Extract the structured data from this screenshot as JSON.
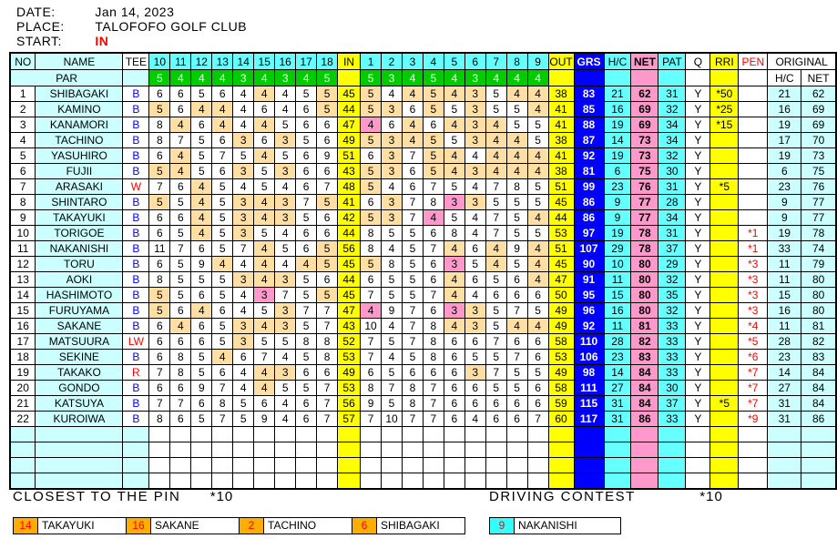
{
  "colors": {
    "cyan_bright": "#66FFFF",
    "cyan_light": "#CCFFFF",
    "green": "#00CC00",
    "yellow": "#FFFF00",
    "blue": "#0000FF",
    "pink": "#FF99CC",
    "tan": "#FFDFA3",
    "orange": "#FFAD00",
    "contest_cyan": "#33FFFF",
    "red": "#FF0000",
    "tee_blue": "#0000FF"
  },
  "meta": {
    "date_label": "DATE:",
    "date_value": "Jan 14, 2023",
    "place_label": "PLACE:",
    "place_value": "TALOFOFO GOLF CLUB",
    "start_label": "START:",
    "start_value": "IN"
  },
  "table": {
    "col_no": "NO",
    "col_name": "NAME",
    "col_tee": "TEE",
    "col_in": "IN",
    "col_out": "OUT",
    "col_grs": "GRS",
    "col_hc": "H/C",
    "col_net": "NET",
    "col_pat": "PAT",
    "col_q": "Q",
    "col_rri": "RRI",
    "col_pen": "PEN",
    "col_original": "ORIGINAL",
    "col_orig_hc": "H/C",
    "col_orig_net": "NET",
    "par_label": "PAR",
    "holes_back": [
      "10",
      "11",
      "12",
      "13",
      "14",
      "15",
      "16",
      "17",
      "18"
    ],
    "holes_front": [
      "1",
      "2",
      "3",
      "4",
      "5",
      "6",
      "7",
      "8",
      "9"
    ],
    "par_back": [
      5,
      4,
      4,
      4,
      3,
      4,
      3,
      4,
      5
    ],
    "par_front": [
      5,
      3,
      4,
      5,
      4,
      3,
      4,
      4,
      4
    ],
    "empty_rows": 4,
    "players": [
      {
        "no": 1,
        "name": "SHIBAGAKI",
        "tee": "B",
        "back": [
          6,
          6,
          5,
          6,
          4,
          4,
          4,
          5,
          5
        ],
        "in": 45,
        "front": [
          5,
          4,
          4,
          5,
          4,
          3,
          5,
          4,
          4
        ],
        "out": 38,
        "grs": 83,
        "hc": 21,
        "net": 62,
        "pat": 31,
        "q": "Y",
        "rri": "*50",
        "pen": "",
        "orig_hc": 21,
        "orig_net": 62
      },
      {
        "no": 2,
        "name": "KAMINO",
        "tee": "B",
        "back": [
          5,
          6,
          4,
          4,
          4,
          6,
          4,
          6,
          5
        ],
        "in": 44,
        "front": [
          5,
          3,
          6,
          5,
          5,
          3,
          5,
          5,
          4
        ],
        "out": 41,
        "grs": 85,
        "hc": 16,
        "net": 69,
        "pat": 32,
        "q": "Y",
        "rri": "*25",
        "pen": "",
        "orig_hc": 16,
        "orig_net": 69
      },
      {
        "no": 3,
        "name": "KANAMORI",
        "tee": "B",
        "back": [
          8,
          4,
          6,
          4,
          4,
          4,
          5,
          6,
          6
        ],
        "in": 47,
        "front": [
          4,
          6,
          4,
          6,
          4,
          3,
          4,
          5,
          5
        ],
        "out": 41,
        "grs": 88,
        "hc": 19,
        "net": 69,
        "pat": 34,
        "q": "Y",
        "rri": "*15",
        "pen": "",
        "orig_hc": 19,
        "orig_net": 69
      },
      {
        "no": 4,
        "name": "TACHINO",
        "tee": "B",
        "back": [
          8,
          7,
          5,
          6,
          3,
          6,
          3,
          5,
          6
        ],
        "in": 49,
        "front": [
          5,
          3,
          4,
          5,
          5,
          3,
          4,
          4,
          5
        ],
        "out": 38,
        "grs": 87,
        "hc": 14,
        "net": 73,
        "pat": 34,
        "q": "Y",
        "rri": "",
        "pen": "",
        "orig_hc": 17,
        "orig_net": 70
      },
      {
        "no": 5,
        "name": "YASUHIRO",
        "tee": "B",
        "back": [
          6,
          4,
          5,
          7,
          5,
          4,
          5,
          6,
          9
        ],
        "in": 51,
        "front": [
          6,
          3,
          7,
          5,
          4,
          4,
          4,
          4,
          4
        ],
        "out": 41,
        "grs": 92,
        "hc": 19,
        "net": 73,
        "pat": 32,
        "q": "Y",
        "rri": "",
        "pen": "",
        "orig_hc": 19,
        "orig_net": 73
      },
      {
        "no": 6,
        "name": "FUJII",
        "tee": "B",
        "back": [
          5,
          4,
          5,
          6,
          3,
          5,
          3,
          6,
          6
        ],
        "in": 43,
        "front": [
          5,
          3,
          6,
          5,
          4,
          3,
          4,
          4,
          4
        ],
        "out": 38,
        "grs": 81,
        "hc": 6,
        "net": 75,
        "pat": 30,
        "q": "Y",
        "rri": "",
        "pen": "",
        "orig_hc": 6,
        "orig_net": 75
      },
      {
        "no": 7,
        "name": "ARASAKI",
        "tee": "W",
        "back": [
          7,
          6,
          4,
          5,
          4,
          5,
          4,
          6,
          7
        ],
        "in": 48,
        "front": [
          5,
          4,
          6,
          7,
          5,
          4,
          7,
          8,
          5
        ],
        "out": 51,
        "grs": 99,
        "hc": 23,
        "net": 76,
        "pat": 31,
        "q": "Y",
        "rri": "*5",
        "pen": "",
        "orig_hc": 23,
        "orig_net": 76
      },
      {
        "no": 8,
        "name": "SHINTARO",
        "tee": "B",
        "back": [
          5,
          5,
          4,
          5,
          3,
          4,
          3,
          7,
          5
        ],
        "in": 41,
        "front": [
          6,
          3,
          7,
          8,
          3,
          3,
          5,
          5,
          5
        ],
        "out": 45,
        "grs": 86,
        "hc": 9,
        "net": 77,
        "pat": 28,
        "q": "Y",
        "rri": "",
        "pen": "",
        "orig_hc": 9,
        "orig_net": 77
      },
      {
        "no": 9,
        "name": "TAKAYUKI",
        "tee": "B",
        "back": [
          6,
          6,
          4,
          5,
          3,
          4,
          3,
          5,
          6
        ],
        "in": 42,
        "front": [
          5,
          3,
          7,
          4,
          5,
          4,
          7,
          5,
          4
        ],
        "out": 44,
        "grs": 86,
        "hc": 9,
        "net": 77,
        "pat": 34,
        "q": "Y",
        "rri": "",
        "pen": "",
        "orig_hc": 9,
        "orig_net": 77
      },
      {
        "no": 10,
        "name": "TORIGOE",
        "tee": "B",
        "back": [
          6,
          5,
          4,
          5,
          3,
          5,
          4,
          6,
          6
        ],
        "in": 44,
        "front": [
          8,
          5,
          5,
          6,
          8,
          4,
          7,
          5,
          5
        ],
        "out": 53,
        "grs": 97,
        "hc": 19,
        "net": 78,
        "pat": 31,
        "q": "Y",
        "rri": "",
        "pen": "*1",
        "orig_hc": 19,
        "orig_net": 78
      },
      {
        "no": 11,
        "name": "NAKANISHI",
        "tee": "B",
        "back": [
          11,
          7,
          6,
          5,
          7,
          4,
          5,
          6,
          5
        ],
        "in": 56,
        "front": [
          8,
          4,
          5,
          7,
          4,
          6,
          4,
          9,
          4
        ],
        "out": 51,
        "grs": 107,
        "hc": 29,
        "net": 78,
        "pat": 37,
        "q": "Y",
        "rri": "",
        "pen": "*1",
        "orig_hc": 33,
        "orig_net": 74
      },
      {
        "no": 12,
        "name": "TORU",
        "tee": "B",
        "back": [
          6,
          5,
          9,
          4,
          4,
          4,
          4,
          4,
          5
        ],
        "in": 45,
        "front": [
          5,
          8,
          5,
          6,
          3,
          5,
          4,
          5,
          4
        ],
        "out": 45,
        "grs": 90,
        "hc": 10,
        "net": 80,
        "pat": 29,
        "q": "Y",
        "rri": "",
        "pen": "*3",
        "orig_hc": 11,
        "orig_net": 79
      },
      {
        "no": 13,
        "name": "AOKI",
        "tee": "B",
        "back": [
          8,
          5,
          5,
          5,
          3,
          4,
          3,
          5,
          6
        ],
        "in": 44,
        "front": [
          6,
          5,
          5,
          6,
          4,
          6,
          5,
          6,
          4
        ],
        "out": 47,
        "grs": 91,
        "hc": 11,
        "net": 80,
        "pat": 32,
        "q": "Y",
        "rri": "",
        "pen": "*3",
        "orig_hc": 11,
        "orig_net": 80
      },
      {
        "no": 14,
        "name": "HASHIMOTO",
        "tee": "B",
        "back": [
          5,
          5,
          6,
          5,
          4,
          3,
          7,
          5,
          5
        ],
        "in": 45,
        "front": [
          7,
          5,
          5,
          7,
          4,
          4,
          6,
          6,
          6
        ],
        "out": 50,
        "grs": 95,
        "hc": 15,
        "net": 80,
        "pat": 35,
        "q": "Y",
        "rri": "",
        "pen": "*3",
        "orig_hc": 15,
        "orig_net": 80
      },
      {
        "no": 15,
        "name": "FURUYAMA",
        "tee": "B",
        "back": [
          5,
          6,
          4,
          6,
          4,
          5,
          3,
          7,
          7
        ],
        "in": 47,
        "front": [
          4,
          9,
          7,
          6,
          3,
          3,
          5,
          7,
          5
        ],
        "out": 49,
        "grs": 96,
        "hc": 16,
        "net": 80,
        "pat": 32,
        "q": "Y",
        "rri": "",
        "pen": "*3",
        "orig_hc": 16,
        "orig_net": 80
      },
      {
        "no": 16,
        "name": "SAKANE",
        "tee": "B",
        "back": [
          6,
          4,
          6,
          5,
          3,
          4,
          3,
          5,
          7
        ],
        "in": 43,
        "front": [
          10,
          4,
          7,
          8,
          4,
          3,
          5,
          4,
          4
        ],
        "out": 49,
        "grs": 92,
        "hc": 11,
        "net": 81,
        "pat": 33,
        "q": "Y",
        "rri": "",
        "pen": "*4",
        "orig_hc": 11,
        "orig_net": 81
      },
      {
        "no": 17,
        "name": "MATSUURA",
        "tee": "LW",
        "back": [
          6,
          6,
          6,
          5,
          3,
          5,
          5,
          8,
          8
        ],
        "in": 52,
        "front": [
          7,
          5,
          7,
          8,
          6,
          6,
          7,
          6,
          6
        ],
        "out": 58,
        "grs": 110,
        "hc": 28,
        "net": 82,
        "pat": 33,
        "q": "Y",
        "rri": "",
        "pen": "*5",
        "orig_hc": 28,
        "orig_net": 82
      },
      {
        "no": 18,
        "name": "SEKINE",
        "tee": "B",
        "back": [
          6,
          8,
          5,
          4,
          6,
          7,
          4,
          5,
          8
        ],
        "in": 53,
        "front": [
          7,
          4,
          5,
          8,
          6,
          5,
          5,
          7,
          6
        ],
        "out": 53,
        "grs": 106,
        "hc": 23,
        "net": 83,
        "pat": 33,
        "q": "Y",
        "rri": "",
        "pen": "*6",
        "orig_hc": 23,
        "orig_net": 83
      },
      {
        "no": 19,
        "name": "TAKAKO",
        "tee": "R",
        "back": [
          7,
          8,
          5,
          6,
          4,
          4,
          3,
          6,
          6
        ],
        "in": 49,
        "front": [
          6,
          5,
          6,
          6,
          6,
          3,
          7,
          5,
          5
        ],
        "out": 49,
        "grs": 98,
        "hc": 14,
        "net": 84,
        "pat": 33,
        "q": "Y",
        "rri": "",
        "pen": "*7",
        "orig_hc": 14,
        "orig_net": 84
      },
      {
        "no": 20,
        "name": "GONDO",
        "tee": "B",
        "back": [
          6,
          6,
          9,
          7,
          4,
          4,
          5,
          5,
          7
        ],
        "in": 53,
        "front": [
          8,
          7,
          8,
          7,
          6,
          6,
          5,
          5,
          6
        ],
        "out": 58,
        "grs": 111,
        "hc": 27,
        "net": 84,
        "pat": 30,
        "q": "Y",
        "rri": "",
        "pen": "*7",
        "orig_hc": 27,
        "orig_net": 84
      },
      {
        "no": 21,
        "name": "KATSUYA",
        "tee": "B",
        "back": [
          7,
          7,
          6,
          8,
          5,
          6,
          4,
          6,
          7
        ],
        "in": 56,
        "front": [
          9,
          5,
          8,
          7,
          6,
          6,
          6,
          6,
          6
        ],
        "out": 59,
        "grs": 115,
        "hc": 31,
        "net": 84,
        "pat": 37,
        "q": "Y",
        "rri": "*5",
        "pen": "*7",
        "orig_hc": 31,
        "orig_net": 84
      },
      {
        "no": 22,
        "name": "KUROIWA",
        "tee": "B",
        "back": [
          8,
          6,
          5,
          7,
          5,
          9,
          4,
          6,
          7
        ],
        "in": 57,
        "front": [
          7,
          10,
          7,
          7,
          6,
          4,
          6,
          6,
          7
        ],
        "out": 60,
        "grs": 117,
        "hc": 31,
        "net": 86,
        "pat": 33,
        "q": "Y",
        "rri": "",
        "pen": "*9",
        "orig_hc": 31,
        "orig_net": 86
      }
    ]
  },
  "contests": {
    "closest": {
      "title": "CLOSEST TO THE PIN",
      "mult": "*10",
      "winners": [
        {
          "hole": "14",
          "name": "TAKAYUKI"
        },
        {
          "hole": "16",
          "name": "SAKANE"
        },
        {
          "hole": "2",
          "name": "TACHINO"
        },
        {
          "hole": "6",
          "name": "SHIBAGAKI"
        }
      ]
    },
    "driving": {
      "title": "DRIVING CONTEST",
      "mult": "*10",
      "winners": [
        {
          "hole": "9",
          "name": "NAKANISHI"
        }
      ]
    }
  }
}
